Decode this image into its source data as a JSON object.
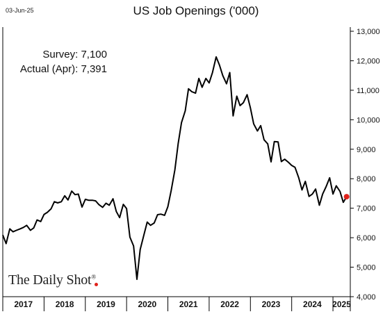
{
  "header": {
    "date": "03-Jun-25",
    "title": "US Job Openings ('000)"
  },
  "annotations": {
    "survey_label": "Survey:",
    "survey_value": "7,100",
    "actual_label": "Actual (Apr):",
    "actual_value": "7,391"
  },
  "brand": {
    "text": "The Daily Shot",
    "mark": "®"
  },
  "colors": {
    "line": "#000000",
    "highlight_point": "#e0231c",
    "axis": "#000000"
  },
  "chart_data": {
    "type": "line",
    "title": "US Job Openings ('000)",
    "xlabel": "",
    "ylabel": "",
    "ylim": [
      4000,
      13000
    ],
    "y_ticks": [
      4000,
      5000,
      6000,
      7000,
      8000,
      9000,
      10000,
      11000,
      12000,
      13000
    ],
    "y_tick_labels": [
      "4,000",
      "5,000",
      "6,000",
      "7,000",
      "8,000",
      "9,000",
      "10,000",
      "11,000",
      "12,000",
      "13,000"
    ],
    "y_axis_side": "right",
    "grid": false,
    "x_categories": [
      "2017",
      "2018",
      "2019",
      "2020",
      "2021",
      "2022",
      "2023",
      "2024",
      "2025"
    ],
    "x_range": [
      2017.0,
      2025.42
    ],
    "series": [
      {
        "values": [
          [
            2017.0,
            6090
          ],
          [
            2017.08,
            5800
          ],
          [
            2017.17,
            6300
          ],
          [
            2017.25,
            6200
          ],
          [
            2017.33,
            6250
          ],
          [
            2017.42,
            6300
          ],
          [
            2017.5,
            6350
          ],
          [
            2017.58,
            6420
          ],
          [
            2017.67,
            6250
          ],
          [
            2017.75,
            6330
          ],
          [
            2017.83,
            6600
          ],
          [
            2017.92,
            6550
          ],
          [
            2018.0,
            6790
          ],
          [
            2018.08,
            6860
          ],
          [
            2018.17,
            6980
          ],
          [
            2018.25,
            7220
          ],
          [
            2018.33,
            7180
          ],
          [
            2018.42,
            7220
          ],
          [
            2018.5,
            7420
          ],
          [
            2018.58,
            7280
          ],
          [
            2018.67,
            7580
          ],
          [
            2018.75,
            7460
          ],
          [
            2018.83,
            7480
          ],
          [
            2018.92,
            7040
          ],
          [
            2019.0,
            7300
          ],
          [
            2019.08,
            7270
          ],
          [
            2019.17,
            7270
          ],
          [
            2019.25,
            7250
          ],
          [
            2019.33,
            7120
          ],
          [
            2019.42,
            7030
          ],
          [
            2019.5,
            7170
          ],
          [
            2019.58,
            7100
          ],
          [
            2019.67,
            7320
          ],
          [
            2019.75,
            6890
          ],
          [
            2019.83,
            6680
          ],
          [
            2019.92,
            7130
          ],
          [
            2020.0,
            6990
          ],
          [
            2020.08,
            6020
          ],
          [
            2020.17,
            5720
          ],
          [
            2020.25,
            4590
          ],
          [
            2020.33,
            5600
          ],
          [
            2020.42,
            6100
          ],
          [
            2020.5,
            6530
          ],
          [
            2020.58,
            6420
          ],
          [
            2020.67,
            6500
          ],
          [
            2020.75,
            6780
          ],
          [
            2020.83,
            6800
          ],
          [
            2020.92,
            6760
          ],
          [
            2021.0,
            7050
          ],
          [
            2021.08,
            7600
          ],
          [
            2021.17,
            8300
          ],
          [
            2021.25,
            9200
          ],
          [
            2021.33,
            9900
          ],
          [
            2021.42,
            10300
          ],
          [
            2021.5,
            11050
          ],
          [
            2021.58,
            10950
          ],
          [
            2021.67,
            10900
          ],
          [
            2021.75,
            11400
          ],
          [
            2021.83,
            11100
          ],
          [
            2021.92,
            11400
          ],
          [
            2022.0,
            11250
          ],
          [
            2022.08,
            11600
          ],
          [
            2022.17,
            12130
          ],
          [
            2022.25,
            11850
          ],
          [
            2022.33,
            11500
          ],
          [
            2022.42,
            11220
          ],
          [
            2022.5,
            11600
          ],
          [
            2022.58,
            10130
          ],
          [
            2022.67,
            10800
          ],
          [
            2022.75,
            10480
          ],
          [
            2022.83,
            10580
          ],
          [
            2022.92,
            10850
          ],
          [
            2023.0,
            10400
          ],
          [
            2023.08,
            9860
          ],
          [
            2023.17,
            9620
          ],
          [
            2023.25,
            9800
          ],
          [
            2023.33,
            9320
          ],
          [
            2023.42,
            9180
          ],
          [
            2023.5,
            8570
          ],
          [
            2023.58,
            9260
          ],
          [
            2023.67,
            9250
          ],
          [
            2023.75,
            8580
          ],
          [
            2023.83,
            8660
          ],
          [
            2023.92,
            8560
          ],
          [
            2024.0,
            8450
          ],
          [
            2024.08,
            8390
          ],
          [
            2024.17,
            8030
          ],
          [
            2024.25,
            7620
          ],
          [
            2024.33,
            7910
          ],
          [
            2024.42,
            7400
          ],
          [
            2024.5,
            7480
          ],
          [
            2024.58,
            7650
          ],
          [
            2024.67,
            7100
          ],
          [
            2024.75,
            7480
          ],
          [
            2024.83,
            7720
          ],
          [
            2024.92,
            8030
          ],
          [
            2025.0,
            7480
          ],
          [
            2025.08,
            7760
          ],
          [
            2025.17,
            7570
          ],
          [
            2025.25,
            7200
          ],
          [
            2025.33,
            7391
          ]
        ]
      }
    ],
    "highlight_point": {
      "x": 2025.33,
      "y": 7391
    }
  }
}
